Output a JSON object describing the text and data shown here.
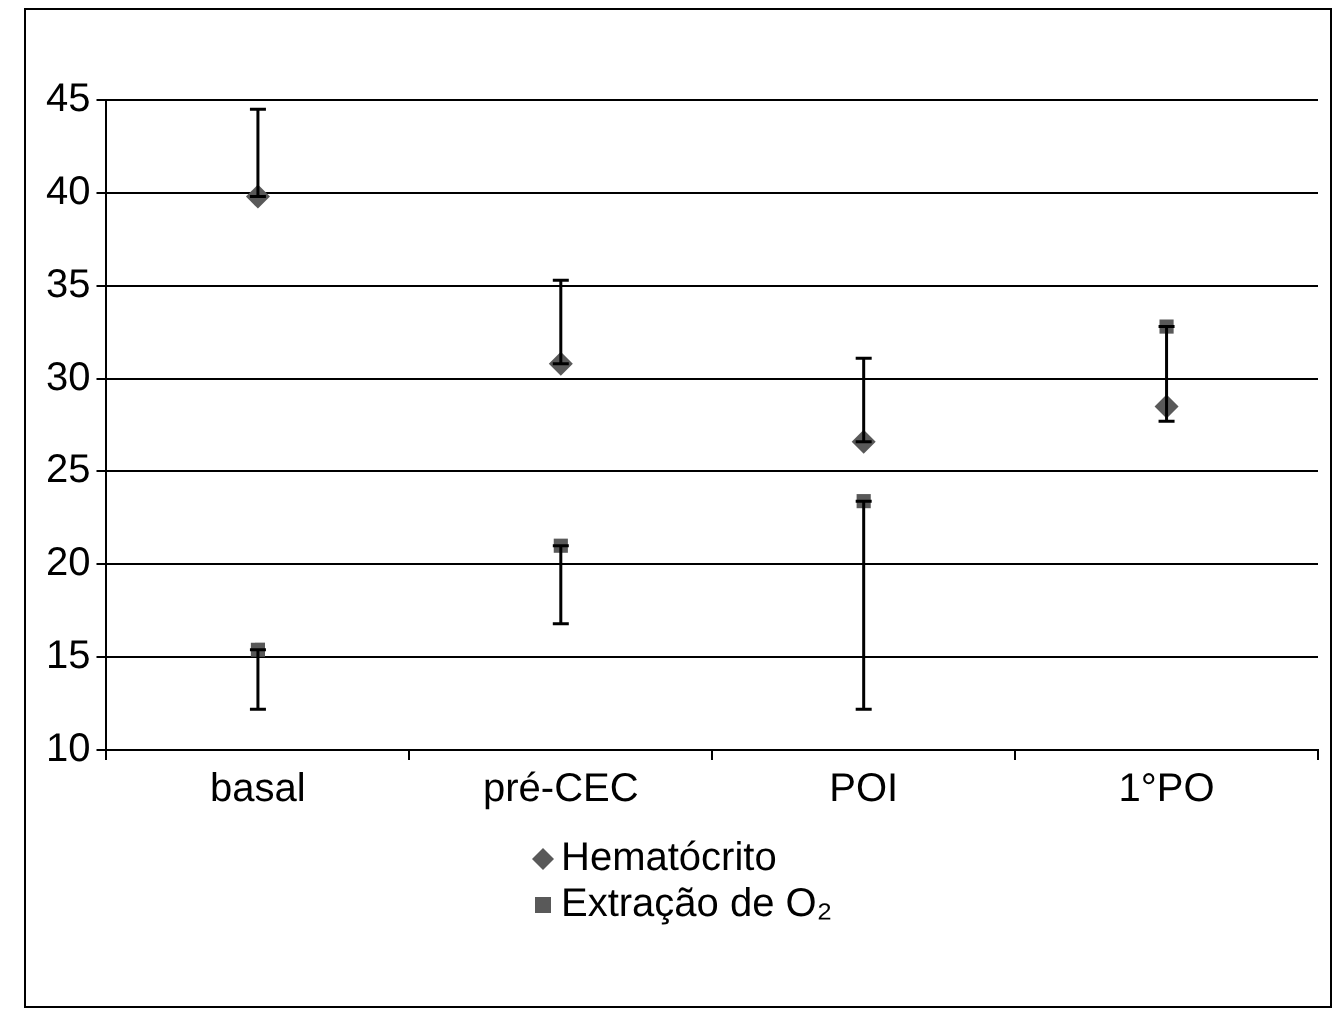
{
  "chart_data": {
    "type": "scatter",
    "categories": [
      "basal",
      "pré-CEC",
      "POI",
      "1°PO"
    ],
    "ylim": [
      10,
      45
    ],
    "yticks": [
      10,
      15,
      20,
      25,
      30,
      35,
      40,
      45
    ],
    "grid": "y",
    "legend": "bottom",
    "series": [
      {
        "name": "Hematócrito",
        "color": "#595959",
        "marker": "diamond",
        "values": [
          39.8,
          30.8,
          26.6,
          28.5
        ],
        "errors": [
          [
            39.8,
            44.5
          ],
          [
            30.8,
            35.3
          ],
          [
            26.6,
            31.1
          ],
          null
        ]
      },
      {
        "name": "Extração de O₂",
        "color": "#595959",
        "marker": "square",
        "values": [
          15.4,
          21.0,
          23.4,
          32.8
        ],
        "errors": [
          [
            12.2,
            15.4
          ],
          [
            16.8,
            21.0
          ],
          [
            12.2,
            23.4
          ],
          [
            27.7,
            32.8
          ]
        ]
      }
    ]
  }
}
